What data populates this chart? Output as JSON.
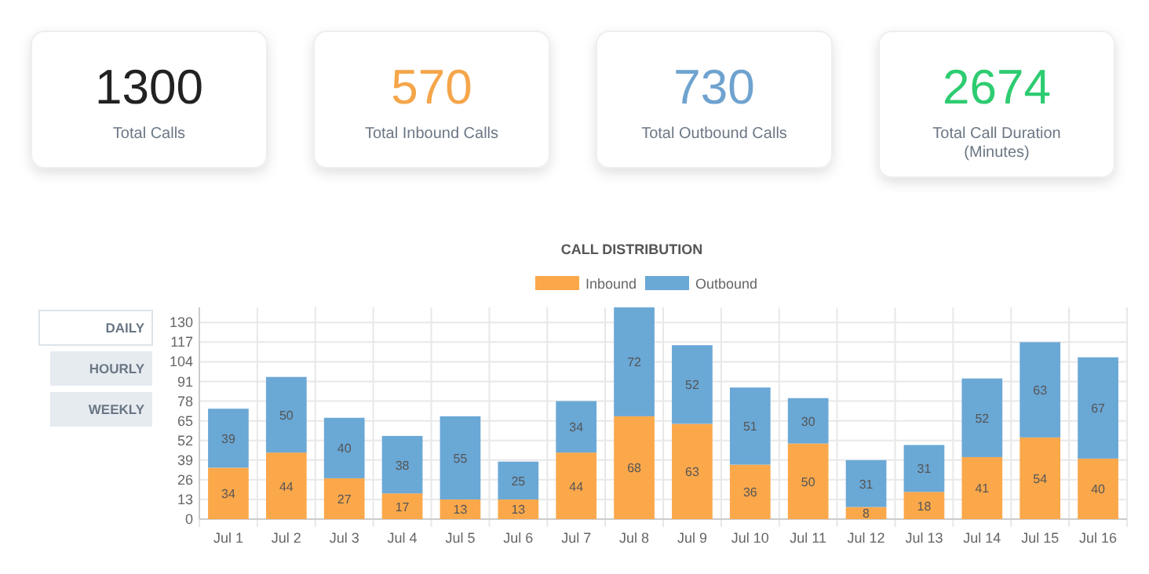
{
  "chart_data": [
    {
      "type": "other",
      "title": "1300",
      "subtitle": "Total Calls",
      "color": "#222222"
    },
    {
      "type": "other",
      "title": "570",
      "subtitle": "Total Inbound Calls",
      "color": "#f5a54a"
    },
    {
      "type": "other",
      "title": "730",
      "subtitle": "Total Outbound Calls",
      "color": "#6fa3cf"
    },
    {
      "type": "other",
      "title": "2674",
      "subtitle": "Total Call Duration (Minutes)",
      "color": "#2ecc71"
    },
    {
      "type": "bar",
      "title": "CALL DISTRIBUTION",
      "stacked": true,
      "data_labels": true,
      "grid": true,
      "legend": "top",
      "annotations": [
        "DAILY",
        "HOURLY",
        "WEEKLY"
      ],
      "categories": [
        "Jul 1",
        "Jul 2",
        "Jul 3",
        "Jul 4",
        "Jul 5",
        "Jul 6",
        "Jul 7",
        "Jul 8",
        "Jul 9",
        "Jul 10",
        "Jul 11",
        "Jul 12",
        "Jul 13",
        "Jul 14",
        "Jul 15",
        "Jul 16"
      ],
      "ylim": [
        0,
        140
      ],
      "yticks": [
        0,
        13,
        26,
        39,
        52,
        65,
        78,
        91,
        104,
        117,
        130
      ],
      "series": [
        {
          "name": "Inbound",
          "color": "#fba84b",
          "values": [
            34,
            44,
            27,
            17,
            13,
            13,
            44,
            68,
            63,
            36,
            50,
            8,
            18,
            41,
            54,
            40
          ]
        },
        {
          "name": "Outbound",
          "color": "#6aa8d6",
          "values": [
            39,
            50,
            40,
            38,
            55,
            25,
            34,
            72,
            52,
            51,
            30,
            31,
            31,
            52,
            63,
            67
          ]
        }
      ]
    }
  ]
}
